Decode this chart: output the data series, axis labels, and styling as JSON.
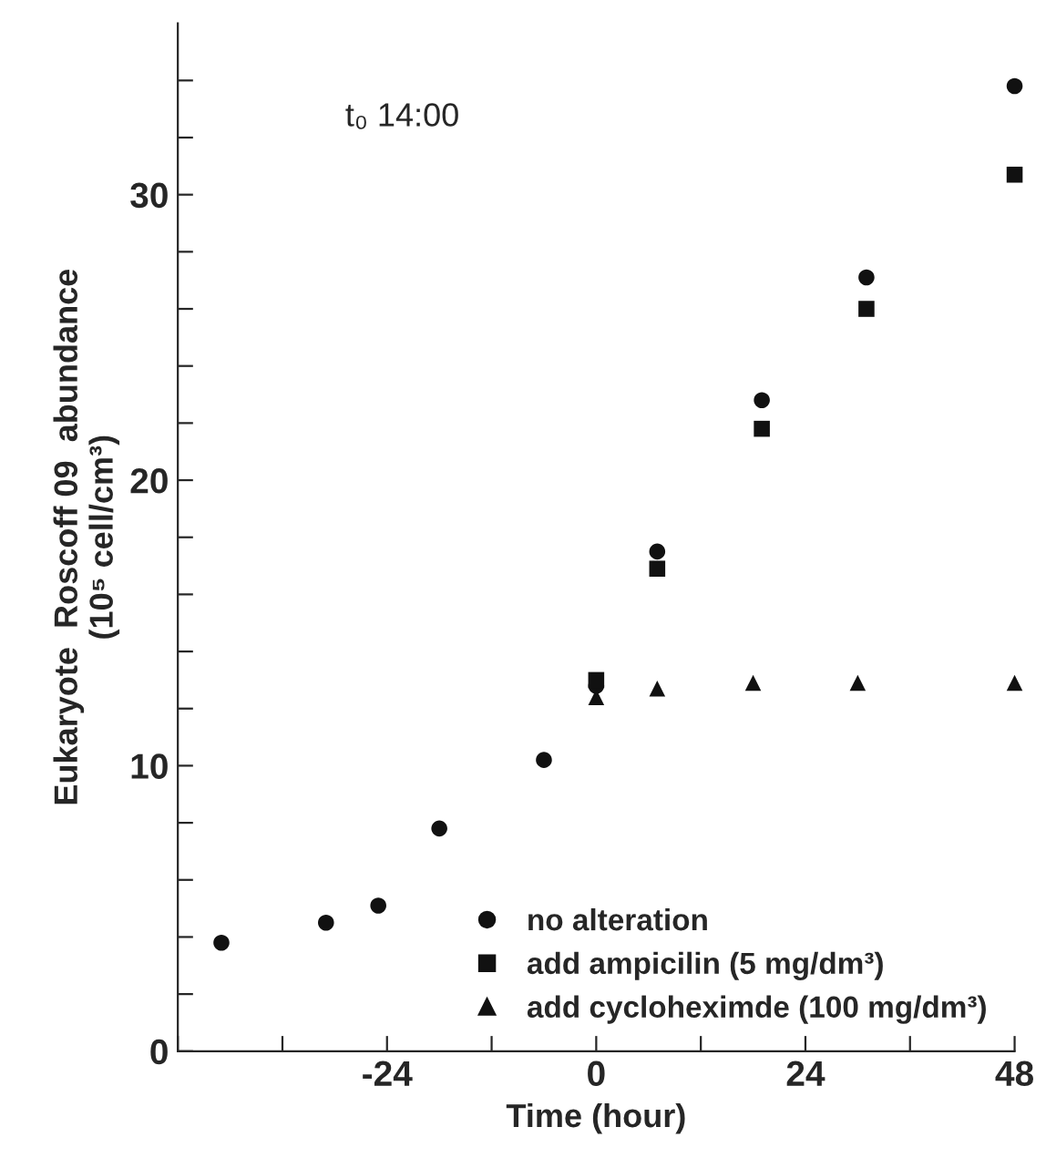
{
  "chart_data": {
    "type": "scatter",
    "xlabel": "Time (hour)",
    "ylabel": "Eukaryote  Roscoff 09  abundance\n(10⁵ cell/cm³)",
    "annotations": [
      "t₀ 14:00"
    ],
    "xlim": [
      -48,
      48
    ],
    "xticks": [
      {
        "value": -48,
        "label": null
      },
      {
        "value": -36,
        "label": null
      },
      -24,
      {
        "value": -12,
        "label": null
      },
      0,
      {
        "value": 12,
        "label": null
      },
      24,
      {
        "value": 36,
        "label": null
      },
      48
    ],
    "ylim": [
      0,
      36
    ],
    "yticks": [
      0,
      {
        "value": 2,
        "label": null
      },
      {
        "value": 4,
        "label": null
      },
      {
        "value": 6,
        "label": null
      },
      {
        "value": 8,
        "label": null
      },
      10,
      {
        "value": 12,
        "label": null
      },
      {
        "value": 14,
        "label": null
      },
      {
        "value": 16,
        "label": null
      },
      {
        "value": 18,
        "label": null
      },
      20,
      {
        "value": 22,
        "label": null
      },
      {
        "value": 24,
        "label": null
      },
      {
        "value": 26,
        "label": null
      },
      {
        "value": 28,
        "label": null
      },
      30,
      {
        "value": 32,
        "label": null
      },
      {
        "value": 34,
        "label": null
      }
    ],
    "grid": false,
    "legend": "bottom right",
    "series": [
      {
        "name": "no alteration",
        "color": "#111111",
        "marker": "circle",
        "x": [
          -43,
          -31,
          -25,
          -18,
          -6,
          0,
          7,
          19,
          31,
          48
        ],
        "values": [
          3.8,
          4.5,
          5.1,
          7.8,
          10.2,
          12.8,
          17.5,
          22.8,
          27.1,
          33.8
        ]
      },
      {
        "name": "add ampicilin (5 mg/dm³)",
        "color": "#111111",
        "marker": "square",
        "x": [
          0,
          7,
          19,
          31,
          48
        ],
        "values": [
          13.0,
          16.9,
          21.8,
          26.0,
          30.7
        ]
      },
      {
        "name": "add cycloheximde (100 mg/dm³)",
        "color": "#111111",
        "marker": "triangle",
        "x": [
          0,
          7,
          18,
          30,
          48
        ],
        "values": [
          12.4,
          12.7,
          12.9,
          12.9,
          12.9
        ]
      }
    ]
  }
}
